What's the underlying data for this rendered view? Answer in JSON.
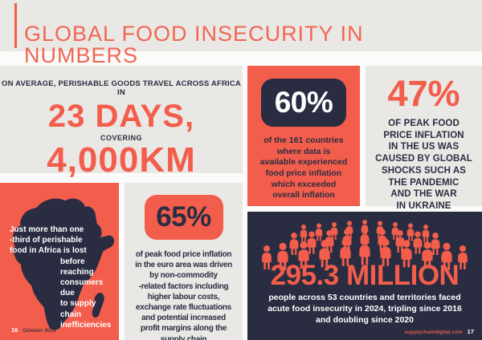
{
  "colors": {
    "orange": "#F35D4B",
    "navy": "#2A2D42",
    "light_gray": "#E9E8E5",
    "white": "#FFFFFF"
  },
  "header": {
    "title": "GLOBAL FOOD INSECURITY IN NUMBERS"
  },
  "cards": {
    "travel": {
      "intro": "ON AVERAGE, PERISHABLE GOODS TRAVEL ACROSS AFRICA IN",
      "stat_days": "23 DAYS,",
      "connector": "COVERING",
      "stat_distance": "4,000KM"
    },
    "countries": {
      "stat": "60%",
      "description": [
        "of the 161 countries",
        "where data is",
        "available experienced",
        "food price inflation",
        "which exceeded",
        "overall inflation"
      ]
    },
    "us_inflation": {
      "stat": "47%",
      "description": [
        "OF PEAK FOOD",
        "PRICE INFLATION",
        "IN THE US WAS",
        "CAUSED BY GLOBAL",
        "SHOCKS SUCH AS",
        "THE PANDEMIC",
        "AND THE WAR",
        "IN UKRAINE"
      ]
    },
    "africa_loss": {
      "icon": "africa-map-icon",
      "text_left": [
        "Just more than one",
        "-third of perishable",
        "food in Africa is lost"
      ],
      "text_right": [
        "before reaching",
        "consumers due",
        "to supply chain",
        "inefficiencies"
      ]
    },
    "euro_inflation": {
      "stat": "65%",
      "description": [
        "of peak food price inflation",
        "in the euro area was driven",
        "by non-commodity",
        "-related factors including",
        "higher labour costs,",
        "exchange rate fluctuations",
        "and potential increased",
        "profit margins along the",
        "supply chain"
      ]
    },
    "acute_insecurity": {
      "icon": "crowd-people-icon",
      "stat": "295.3 MILLION",
      "description": [
        "people across 53 countries and territories faced",
        "acute food insecurity in 2024, tripling since 2016",
        "and doubling since 2020"
      ]
    }
  },
  "footer": {
    "left_page_number": "16",
    "left_date": "October 2025",
    "right_site": "supplychaindigital.com",
    "right_page_number": "17"
  }
}
